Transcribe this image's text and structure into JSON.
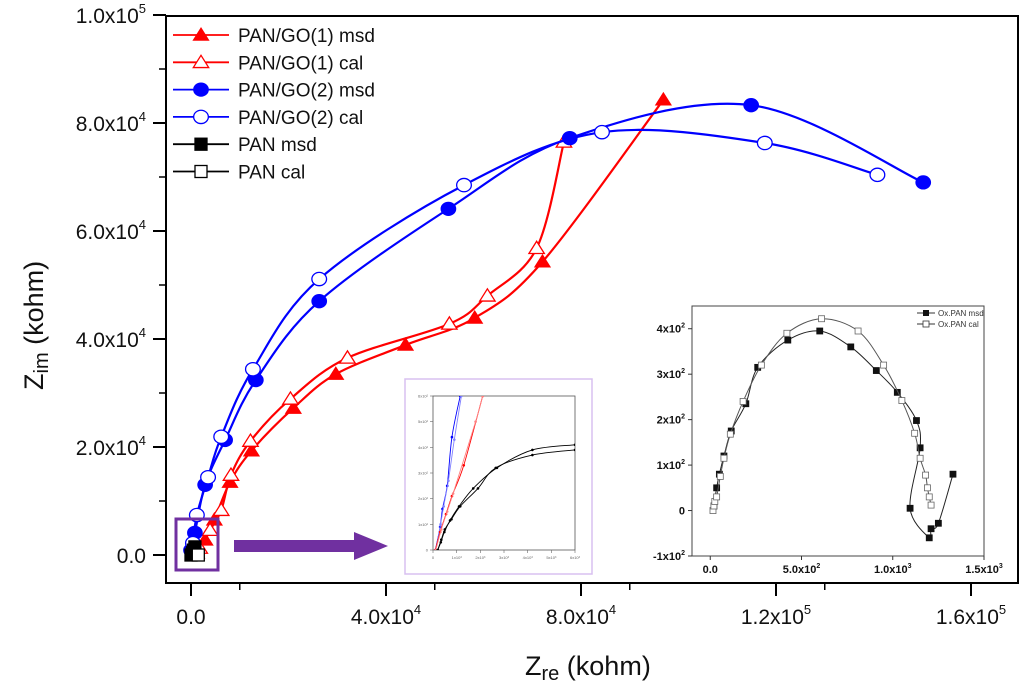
{
  "chart_data": {
    "type": "line",
    "title": "",
    "xlabel": "Z",
    "xlabel_sub": "re",
    "xlabel_unit": " (kohm)",
    "ylabel": "Z",
    "ylabel_sub": "im",
    "ylabel_unit": " (kohm)",
    "xlim": [
      -4000,
      168000
    ],
    "ylim": [
      -5000,
      100000
    ],
    "x_ticks": [
      0,
      40000,
      80000,
      120000,
      160000
    ],
    "x_tick_labels": [
      {
        "mant": "0.0",
        "exp": ""
      },
      {
        "mant": "4.0x10",
        "exp": "4"
      },
      {
        "mant": "8.0x10",
        "exp": "4"
      },
      {
        "mant": "1.2x10",
        "exp": "5"
      },
      {
        "mant": "1.6x10",
        "exp": "5"
      }
    ],
    "y_ticks": [
      0,
      20000,
      40000,
      60000,
      80000,
      100000
    ],
    "y_tick_labels": [
      {
        "mant": "0.0",
        "exp": ""
      },
      {
        "mant": "2.0x10",
        "exp": "4"
      },
      {
        "mant": "4.0x10",
        "exp": "4"
      },
      {
        "mant": "6.0x10",
        "exp": "4"
      },
      {
        "mant": "8.0x10",
        "exp": "4"
      },
      {
        "mant": "1.0x10",
        "exp": "5"
      }
    ],
    "legend_position": "top-left",
    "series": [
      {
        "name": "PAN/GO(1) msd",
        "color": "#ff0000",
        "marker": "triangle-filled",
        "x": [
          1200,
          2900,
          4800,
          8000,
          12400,
          21000,
          29700,
          44000,
          58200,
          72100,
          96900
        ],
        "y": [
          400,
          2800,
          6500,
          13500,
          19300,
          27200,
          33500,
          38900,
          43900,
          54300,
          84300
        ]
      },
      {
        "name": "PAN/GO(1) cal",
        "color": "#ff0000",
        "marker": "triangle-open",
        "x": [
          1800,
          3900,
          6200,
          8200,
          12200,
          20400,
          32100,
          53000,
          60800,
          70900,
          76500
        ],
        "y": [
          1300,
          4600,
          8300,
          14800,
          21100,
          28900,
          36500,
          42800,
          48000,
          56800,
          76500
        ]
      },
      {
        "name": "PAN/GO(2) msd",
        "color": "#0000ff",
        "marker": "circle-filled",
        "x": [
          0,
          800,
          2900,
          7000,
          13300,
          26300,
          52800,
          77700,
          114900,
          150200
        ],
        "y": [
          900,
          4100,
          13000,
          21300,
          32400,
          47000,
          64100,
          77200,
          83300,
          69000
        ]
      },
      {
        "name": "PAN/GO(2) cal",
        "color": "#0000ff",
        "marker": "circle-open",
        "x": [
          400,
          1200,
          3500,
          6200,
          12700,
          26300,
          56000,
          84300,
          117700,
          140800
        ],
        "y": [
          2200,
          7400,
          14400,
          21900,
          34400,
          51100,
          68500,
          78300,
          76300,
          70400
        ]
      },
      {
        "name": "PAN msd",
        "color": "#000000",
        "marker": "square-filled",
        "x": [
          0,
          300,
          500,
          800
        ],
        "y": [
          0,
          400,
          900,
          1500
        ]
      },
      {
        "name": "PAN cal",
        "color": "#000000",
        "marker": "square-open",
        "x": [
          1500
        ],
        "y": [
          0
        ]
      }
    ],
    "highlight_box": {
      "color": "#7030a0",
      "x_range": [
        -2000,
        4500
      ],
      "y_range": [
        -1500,
        6500
      ]
    },
    "arrow_color": "#7030a0",
    "inset_zoom": {
      "border_color": "#d8c0f0",
      "xlim": [
        0,
        6000
      ],
      "ylim": [
        0,
        600
      ],
      "x_tick_labels": [
        "0",
        "1x10³",
        "2x10³",
        "3x10³",
        "4x10³",
        "5x10³",
        "6x10³"
      ],
      "y_tick_labels": [
        "0",
        "1x10²",
        "2x10²",
        "3x10²",
        "4x10²",
        "5x10²",
        "6x10²"
      ],
      "series": [
        {
          "name": "PAN/GO(2) msd",
          "color": "#0000ff",
          "x": [
            100,
            300,
            400,
            600,
            800,
            1150
          ],
          "y": [
            0,
            90,
            160,
            250,
            440,
            600
          ]
        },
        {
          "name": "PAN/GO(2) cal",
          "color": "#8080ff",
          "x": [
            120,
            320,
            450,
            650,
            900,
            1200
          ],
          "y": [
            0,
            100,
            170,
            270,
            430,
            600
          ]
        },
        {
          "name": "PAN/GO(1) msd",
          "color": "#ff0000",
          "x": [
            100,
            300,
            550,
            800,
            1300,
            2100
          ],
          "y": [
            0,
            70,
            140,
            210,
            330,
            600
          ]
        },
        {
          "name": "PAN/GO(1) cal",
          "color": "#ff8080",
          "x": [
            120,
            350,
            600,
            850,
            1800,
            2100
          ],
          "y": [
            0,
            80,
            150,
            220,
            500,
            600
          ]
        },
        {
          "name": "PAN msd",
          "color": "#000000",
          "x": [
            200,
            350,
            500,
            780,
            1150,
            1900,
            2650,
            4200,
            6000
          ],
          "y": [
            0,
            40,
            80,
            120,
            170,
            240,
            320,
            370,
            390
          ]
        },
        {
          "name": "PAN cal",
          "color": "#000000",
          "x": [
            200,
            330,
            480,
            720,
            1100,
            1700,
            2700,
            4200,
            6000
          ],
          "y": [
            0,
            30,
            70,
            115,
            170,
            240,
            320,
            390,
            410
          ]
        }
      ]
    },
    "inset_oxpan": {
      "xlim": [
        -100,
        1500
      ],
      "ylim": [
        -100,
        450
      ],
      "x_ticks": [
        0,
        500,
        1000,
        1500
      ],
      "x_tick_labels": [
        {
          "mant": "0.0",
          "exp": ""
        },
        {
          "mant": "5.0x10",
          "exp": "2"
        },
        {
          "mant": "1.0x10",
          "exp": "3"
        },
        {
          "mant": "1.5x10",
          "exp": "3"
        }
      ],
      "y_ticks": [
        -100,
        0,
        100,
        200,
        300,
        400
      ],
      "y_tick_labels": [
        {
          "mant": "-1x10",
          "exp": "2"
        },
        {
          "mant": "0",
          "exp": ""
        },
        {
          "mant": "1x10",
          "exp": "2"
        },
        {
          "mant": "2x10",
          "exp": "2"
        },
        {
          "mant": "3x10",
          "exp": "2"
        },
        {
          "mant": "4x10",
          "exp": "2"
        }
      ],
      "legend": [
        "Ox.PAN msd",
        "Ox.PAN cal"
      ],
      "series": [
        {
          "name": "Ox.PAN msd",
          "marker": "square-filled",
          "x": [
            20,
            35,
            50,
            75,
            115,
            195,
            260,
            425,
            600,
            770,
            910,
            1025,
            1130,
            1150,
            1095,
            1200,
            1210,
            1250,
            1330
          ],
          "y": [
            10,
            50,
            80,
            120,
            175,
            235,
            315,
            375,
            395,
            360,
            308,
            260,
            198,
            138,
            5,
            -60,
            -40,
            -28,
            80
          ]
        },
        {
          "name": "Ox.PAN cal",
          "marker": "square-open",
          "x": [
            15,
            20,
            25,
            35,
            55,
            75,
            110,
            180,
            280,
            420,
            610,
            810,
            950,
            1050,
            1120,
            1150,
            1180,
            1190,
            1200,
            1210
          ],
          "y": [
            0,
            10,
            20,
            30,
            75,
            115,
            168,
            240,
            320,
            390,
            422,
            395,
            320,
            242,
            170,
            115,
            78,
            50,
            30,
            12
          ]
        }
      ]
    }
  }
}
